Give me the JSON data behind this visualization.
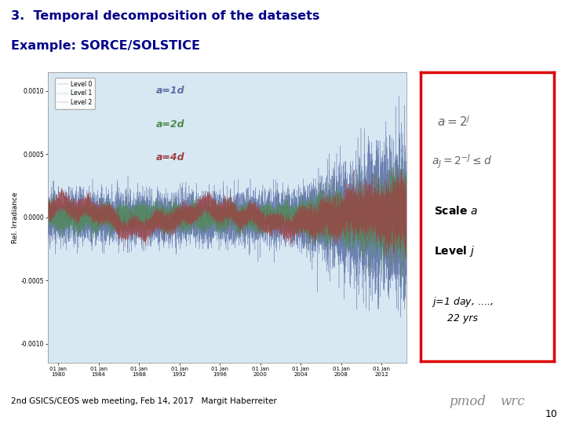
{
  "title_line1": "3.  Temporal decomposition of the datasets",
  "title_line2": "Example: SORCE/SOLSTICE",
  "title_color": "#00008B",
  "bg_color": "#FFFFFF",
  "slide_bg": "#BDD9EE",
  "plot_bg": "#D8E8F3",
  "footer_text": "2nd GSICS/CEOS web meeting, Feb 14, 2017   Margit Haberreiter",
  "footer_page": "10",
  "annot_a1d": "a=1d",
  "annot_a2d": "a=2d",
  "annot_a4d": "a=4d",
  "legend_labels": [
    "Level 0",
    "Level 1",
    "Level 2"
  ],
  "legend_colors": [
    "#5B6FA6",
    "#4E8A4E",
    "#A04040"
  ],
  "right_box_color": "#DD0000",
  "right_box_bg": "#FFFFFF",
  "ylabel": "Rel. Irradiance",
  "ytick_vals": [
    0.001,
    0.0005,
    0.0,
    -0.0005,
    -0.001
  ],
  "xtick_labels": [
    "01 Jan\n1980",
    "01 Jan\n1984",
    "01 Jan\n1988",
    "01 Jan\n1992",
    "01 Jan\n1996",
    "01 Jan\n2000",
    "01 Jan\n2004",
    "01 Jan\n2008",
    "01 Jan\n2012"
  ],
  "noise_seed": 42,
  "n_points": 13000
}
